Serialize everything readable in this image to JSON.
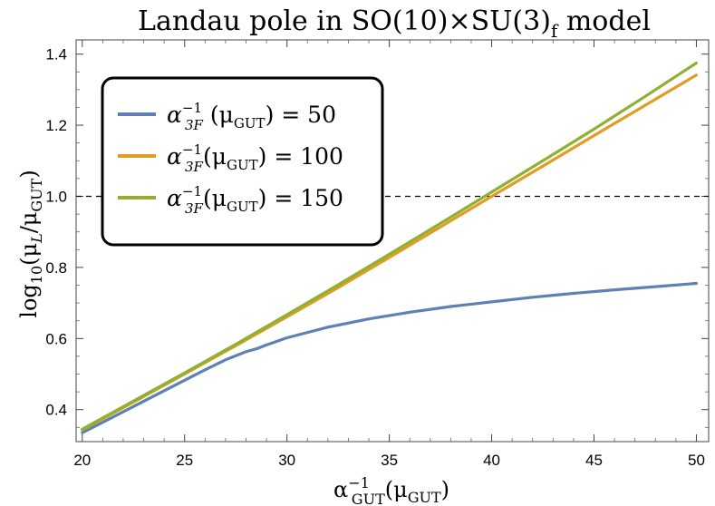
{
  "chart_data": {
    "type": "line",
    "title": {
      "main": "Landau pole in SO(10)×SU(3)",
      "subscript": "f",
      "suffix": " model"
    },
    "xlabel": {
      "alpha": "α",
      "sub": "GUT",
      "sup": "−1",
      "arg": "(μ",
      "arg_sub": "GUT",
      "close": ")"
    },
    "ylabel": {
      "log": "log",
      "log_sub": "10",
      "open": "(μ",
      "num_sub": "L",
      "slash": "/μ",
      "den_sub": "GUT",
      "close": ")"
    },
    "xlim": [
      19.7,
      50.6
    ],
    "ylim": [
      0.31,
      1.44
    ],
    "xticks": [
      20,
      25,
      30,
      35,
      40,
      45,
      50
    ],
    "xtick_labels": [
      "20",
      "25",
      "30",
      "35",
      "40",
      "45",
      "50"
    ],
    "yticks": [
      0.4,
      0.6,
      0.8,
      1.0,
      1.2,
      1.4
    ],
    "ytick_labels": [
      "0.4",
      "0.6",
      "0.8",
      "1.0",
      "1.2",
      "1.4"
    ],
    "reference_line": {
      "y": 1.0,
      "style": "dashed",
      "color": "#000000"
    },
    "legend_position": "top-left",
    "series": [
      {
        "legend_alpha": "α",
        "legend_sub": "3F",
        "legend_sup": "−1",
        "legend_mid": " (μ",
        "legend_mu_sub": "GUT",
        "legend_tail": ") = 50",
        "color": "#5E81B5",
        "x": [
          20,
          22,
          24,
          26,
          27,
          28,
          28.5,
          29,
          30,
          32,
          34,
          36,
          38,
          40,
          42,
          44,
          46,
          48,
          50
        ],
        "y": [
          0.335,
          0.394,
          0.453,
          0.512,
          0.54,
          0.563,
          0.571,
          0.582,
          0.602,
          0.632,
          0.655,
          0.674,
          0.69,
          0.703,
          0.716,
          0.727,
          0.737,
          0.746,
          0.755
        ]
      },
      {
        "legend_alpha": "α",
        "legend_sub": "3F",
        "legend_sup": "−1",
        "legend_mid": "(μ",
        "legend_mu_sub": "GUT",
        "legend_tail": ") = 100",
        "color": "#E19C24",
        "x": [
          20,
          22.5,
          25,
          27.5,
          30,
          32.5,
          35,
          37.5,
          40,
          42.5,
          45,
          47.5,
          50
        ],
        "y": [
          0.343,
          0.421,
          0.5,
          0.58,
          0.661,
          0.743,
          0.828,
          0.914,
          1.0,
          1.085,
          1.171,
          1.256,
          1.341
        ]
      },
      {
        "legend_alpha": "α",
        "legend_sub": "3F",
        "legend_sup": "−1",
        "legend_mid": "(μ",
        "legend_mu_sub": "GUT",
        "legend_tail": ") = 150",
        "color": "#8FB032",
        "x": [
          20,
          22.5,
          25,
          27.5,
          30,
          32.5,
          35,
          37.5,
          40,
          42.5,
          45,
          47.5,
          50
        ],
        "y": [
          0.345,
          0.424,
          0.503,
          0.584,
          0.667,
          0.751,
          0.837,
          0.924,
          1.012,
          1.1,
          1.189,
          1.281,
          1.375
        ]
      }
    ]
  }
}
